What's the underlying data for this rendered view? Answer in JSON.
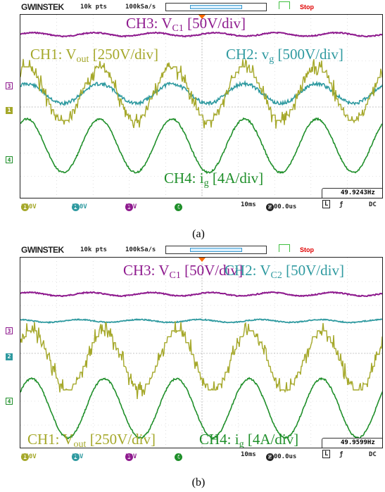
{
  "panel_a": {
    "header": {
      "brand": "GWINSTEK",
      "points": "10k pts",
      "sample_rate": "100kSa/s",
      "state": "Stop"
    },
    "labels": {
      "ch3": {
        "main": "CH3: V",
        "sub": "C1",
        "tail": " [50V/div]"
      },
      "ch1": {
        "main": "CH1: V",
        "sub": "out",
        "tail": " [250V/div]"
      },
      "ch2": {
        "main": "CH2: v",
        "sub": "g",
        "tail": " [500V/div]"
      },
      "ch4": {
        "main": "CH4: i",
        "sub": "g",
        "tail": " [4A/div]"
      }
    },
    "markers": {
      "ch3": "3",
      "ch1": "1",
      "ch4": "4"
    },
    "frequency": "49.9243Hz",
    "bottom": {
      "ch1": "250V",
      "ch2": "500V",
      "ch3": "50V",
      "ch4": "4A",
      "timebase": "10ms",
      "hpos": "-100.0us",
      "coupling": "DC"
    },
    "caption": "(a)"
  },
  "panel_b": {
    "header": {
      "brand": "GWINSTEK",
      "points": "10k pts",
      "sample_rate": "100kSa/s",
      "state": "Stop"
    },
    "labels": {
      "ch3": {
        "main": "CH3: V",
        "sub": "C1",
        "tail": " [50V/div]"
      },
      "ch2": {
        "main": "CH2: V",
        "sub": "C2",
        "tail": " [50V/div]"
      },
      "ch1": {
        "main": "CH1: V",
        "sub": "out",
        "tail": " [250V/div]"
      },
      "ch4": {
        "main": "CH4: i",
        "sub": "g",
        "tail": " [4A/div]"
      }
    },
    "markers": {
      "ch3": "3",
      "ch2": "2",
      "ch4": "4"
    },
    "frequency": "49.9599Hz",
    "bottom": {
      "ch1": "250V",
      "ch2": "50V",
      "ch3": "50V",
      "ch4": "4A",
      "timebase": "10ms",
      "hpos": "-100.0us",
      "coupling": "DC"
    },
    "caption": "(b)"
  },
  "colors": {
    "ch1": "#a5a82a",
    "ch2": "#2f9aa0",
    "ch3": "#8e1a8e",
    "ch4": "#1f8f2a",
    "stop": "#e00000"
  }
}
